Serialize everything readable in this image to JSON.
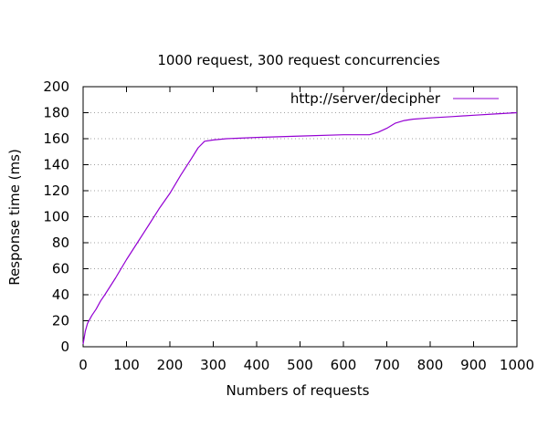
{
  "chart_data": {
    "type": "line",
    "title": "1000 request, 300 request concurrencies",
    "xlabel": "Numbers of requests",
    "ylabel": "Response time (ms)",
    "xlim": [
      0,
      1000
    ],
    "ylim": [
      0,
      200
    ],
    "xticks": [
      0,
      100,
      200,
      300,
      400,
      500,
      600,
      700,
      800,
      900,
      1000
    ],
    "yticks": [
      0,
      20,
      40,
      60,
      80,
      100,
      120,
      140,
      160,
      180,
      200
    ],
    "grid": "horizontal-dotted",
    "legend_position": "top-right",
    "series": [
      {
        "name": "http://server/decipher",
        "color": "#9400d3",
        "x": [
          0,
          5,
          10,
          20,
          30,
          40,
          50,
          75,
          100,
          125,
          150,
          175,
          200,
          225,
          250,
          265,
          280,
          300,
          330,
          400,
          500,
          600,
          660,
          680,
          700,
          720,
          740,
          760,
          800,
          850,
          900,
          950,
          1000
        ],
        "y": [
          2,
          12,
          18,
          24,
          29,
          35,
          40,
          53,
          67,
          80,
          93,
          106,
          118,
          132,
          145,
          153,
          158,
          159,
          160,
          161,
          162,
          163,
          163,
          165,
          168,
          172,
          174,
          175,
          176,
          177,
          178,
          179,
          180
        ]
      }
    ]
  }
}
